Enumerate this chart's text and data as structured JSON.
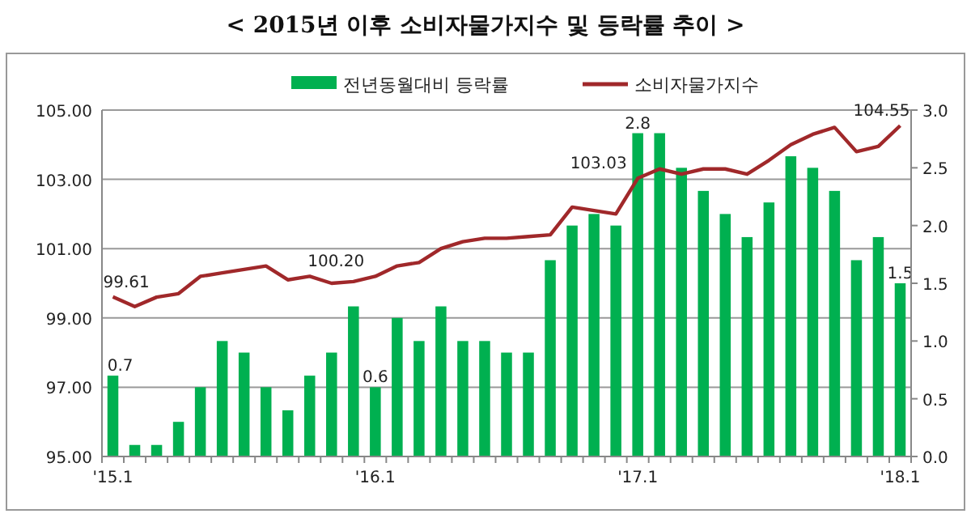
{
  "chart_data": {
    "type": "bar",
    "title": "< 2015년 이후 소비자물가지수 및 등락률 추이 >",
    "categories": [
      "'15.1",
      null,
      null,
      null,
      null,
      null,
      null,
      null,
      null,
      null,
      null,
      null,
      "'16.1",
      null,
      null,
      null,
      null,
      null,
      null,
      null,
      null,
      null,
      null,
      null,
      "'17.1",
      null,
      null,
      null,
      null,
      null,
      null,
      null,
      null,
      null,
      null,
      null,
      "'18.1"
    ],
    "series": [
      {
        "name": "전년동월대비 등락률",
        "axis": "y2",
        "color": "#00b050",
        "values": [
          0.7,
          0.1,
          0.1,
          0.3,
          0.6,
          1.0,
          0.9,
          0.6,
          0.4,
          0.7,
          0.9,
          1.3,
          0.6,
          1.2,
          1.0,
          1.3,
          1.0,
          1.0,
          0.9,
          0.9,
          1.7,
          2.0,
          2.1,
          2.0,
          2.8,
          2.8,
          2.5,
          2.3,
          2.1,
          1.9,
          2.2,
          2.6,
          2.5,
          2.3,
          1.7,
          1.9,
          1.5
        ],
        "value_labels": [
          "0.7",
          null,
          null,
          null,
          null,
          null,
          null,
          null,
          null,
          null,
          null,
          null,
          "0.6",
          null,
          null,
          null,
          null,
          null,
          null,
          null,
          null,
          null,
          null,
          null,
          "2.8",
          null,
          null,
          null,
          null,
          null,
          null,
          null,
          null,
          null,
          null,
          null,
          "1.5"
        ]
      },
      {
        "name": "소비자물가지수",
        "type": "line",
        "axis": "y",
        "color": "#a0282a",
        "values": [
          99.61,
          99.33,
          99.6,
          99.7,
          100.2,
          100.3,
          100.4,
          100.5,
          100.1,
          100.2,
          100.0,
          100.05,
          100.2,
          100.5,
          100.6,
          101.0,
          101.2,
          101.3,
          101.3,
          101.35,
          101.4,
          102.2,
          102.1,
          102.0,
          103.03,
          103.3,
          103.15,
          103.3,
          103.3,
          103.15,
          103.55,
          104.0,
          104.3,
          104.5,
          103.8,
          103.95,
          104.55
        ],
        "value_labels": [
          "99.61",
          null,
          null,
          null,
          null,
          null,
          null,
          null,
          null,
          null,
          null,
          null,
          "100.20",
          null,
          null,
          null,
          null,
          null,
          null,
          null,
          null,
          null,
          null,
          null,
          "103.03",
          null,
          null,
          null,
          null,
          null,
          null,
          null,
          null,
          null,
          null,
          null,
          "104.55"
        ]
      }
    ],
    "ylim": [
      95,
      105
    ],
    "yticks": [
      {
        "value": 95,
        "label": "95.00"
      },
      {
        "value": 97,
        "label": "97.00"
      },
      {
        "value": 99,
        "label": "99.00"
      },
      {
        "value": 101,
        "label": "101.00"
      },
      {
        "value": 103,
        "label": "103.00"
      },
      {
        "value": 105,
        "label": "105.00"
      }
    ],
    "y2lim": [
      0,
      3
    ],
    "y2ticks": [
      {
        "value": 0,
        "label": "0.0"
      },
      {
        "value": 0.5,
        "label": "0.5"
      },
      {
        "value": 1,
        "label": "1.0"
      },
      {
        "value": 1.5,
        "label": "1.5"
      },
      {
        "value": 2,
        "label": "2.0"
      },
      {
        "value": 2.5,
        "label": "2.5"
      },
      {
        "value": 3,
        "label": "3.0"
      }
    ],
    "grid": "y",
    "legend": "top",
    "marker": "none",
    "line_style": "solid"
  }
}
